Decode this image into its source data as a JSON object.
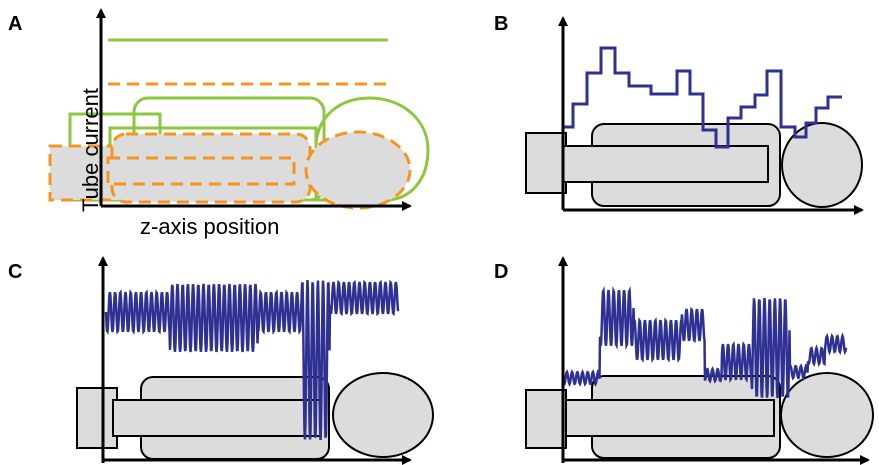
{
  "panels": {
    "a": {
      "letter": "A",
      "xlabel": "z-axis position",
      "ylabel": "Tube current"
    },
    "b": {
      "letter": "B"
    },
    "c": {
      "letter": "C"
    },
    "d": {
      "letter": "D"
    }
  },
  "colors": {
    "green": "#8dc63f",
    "orange": "#f7941d",
    "blue": "#2e3192",
    "body_fill": "#dcdcdc",
    "outline": "#000000"
  }
}
